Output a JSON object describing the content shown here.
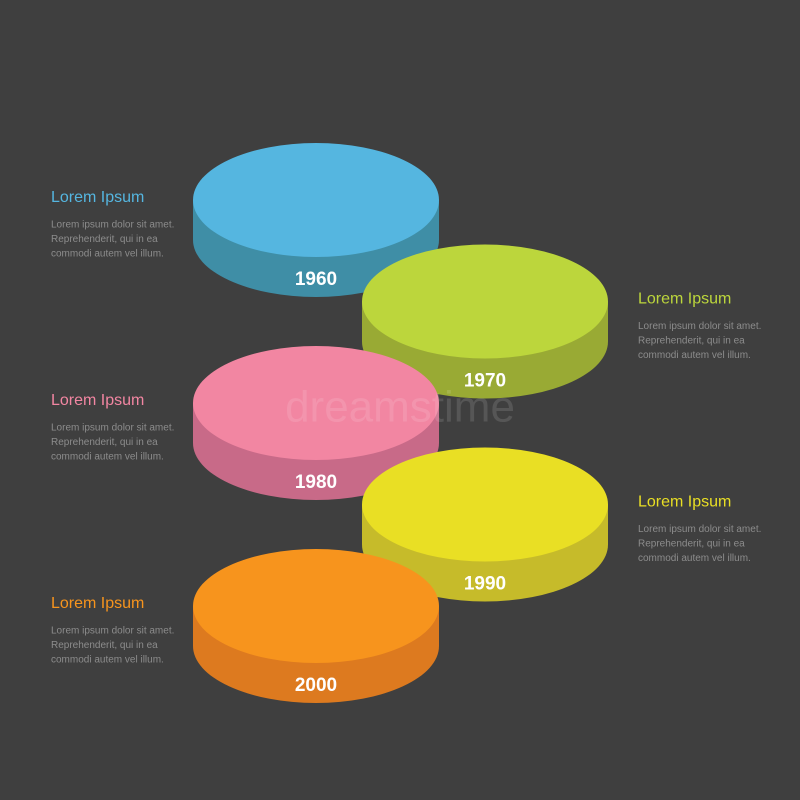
{
  "watermark": "dreamstime",
  "items": [
    {
      "year": "1960",
      "title": "Lorem Ipsum",
      "lines": [
        "Lorem ipsum dolor sit amet.",
        "Reprehenderit, qui in ea",
        "commodi autem vel illum."
      ],
      "color": "#55b6e0",
      "side_color": "#3f8ea6"
    },
    {
      "year": "1970",
      "title": "Lorem Ipsum",
      "lines": [
        "Lorem ipsum dolor sit amet.",
        "Reprehenderit, qui in ea",
        "commodi autem vel illum."
      ],
      "color": "#bcd63c",
      "side_color": "#99aa34"
    },
    {
      "year": "1980",
      "title": "Lorem Ipsum",
      "lines": [
        "Lorem ipsum dolor sit amet.",
        "Reprehenderit, qui in ea",
        "commodi autem vel illum."
      ],
      "color": "#f286a2",
      "side_color": "#c86a88"
    },
    {
      "year": "1990",
      "title": "Lorem Ipsum",
      "lines": [
        "Lorem ipsum dolor sit amet.",
        "Reprehenderit, qui in ea",
        "commodi autem vel illum."
      ],
      "color": "#e9df24",
      "side_color": "#c6bb2a"
    },
    {
      "year": "2000",
      "title": "Lorem Ipsum",
      "lines": [
        "Lorem ipsum dolor sit amet.",
        "Reprehenderit, qui in ea",
        "commodi autem vel illum."
      ],
      "color": "#f7941d",
      "side_color": "#dd7a1f"
    }
  ]
}
